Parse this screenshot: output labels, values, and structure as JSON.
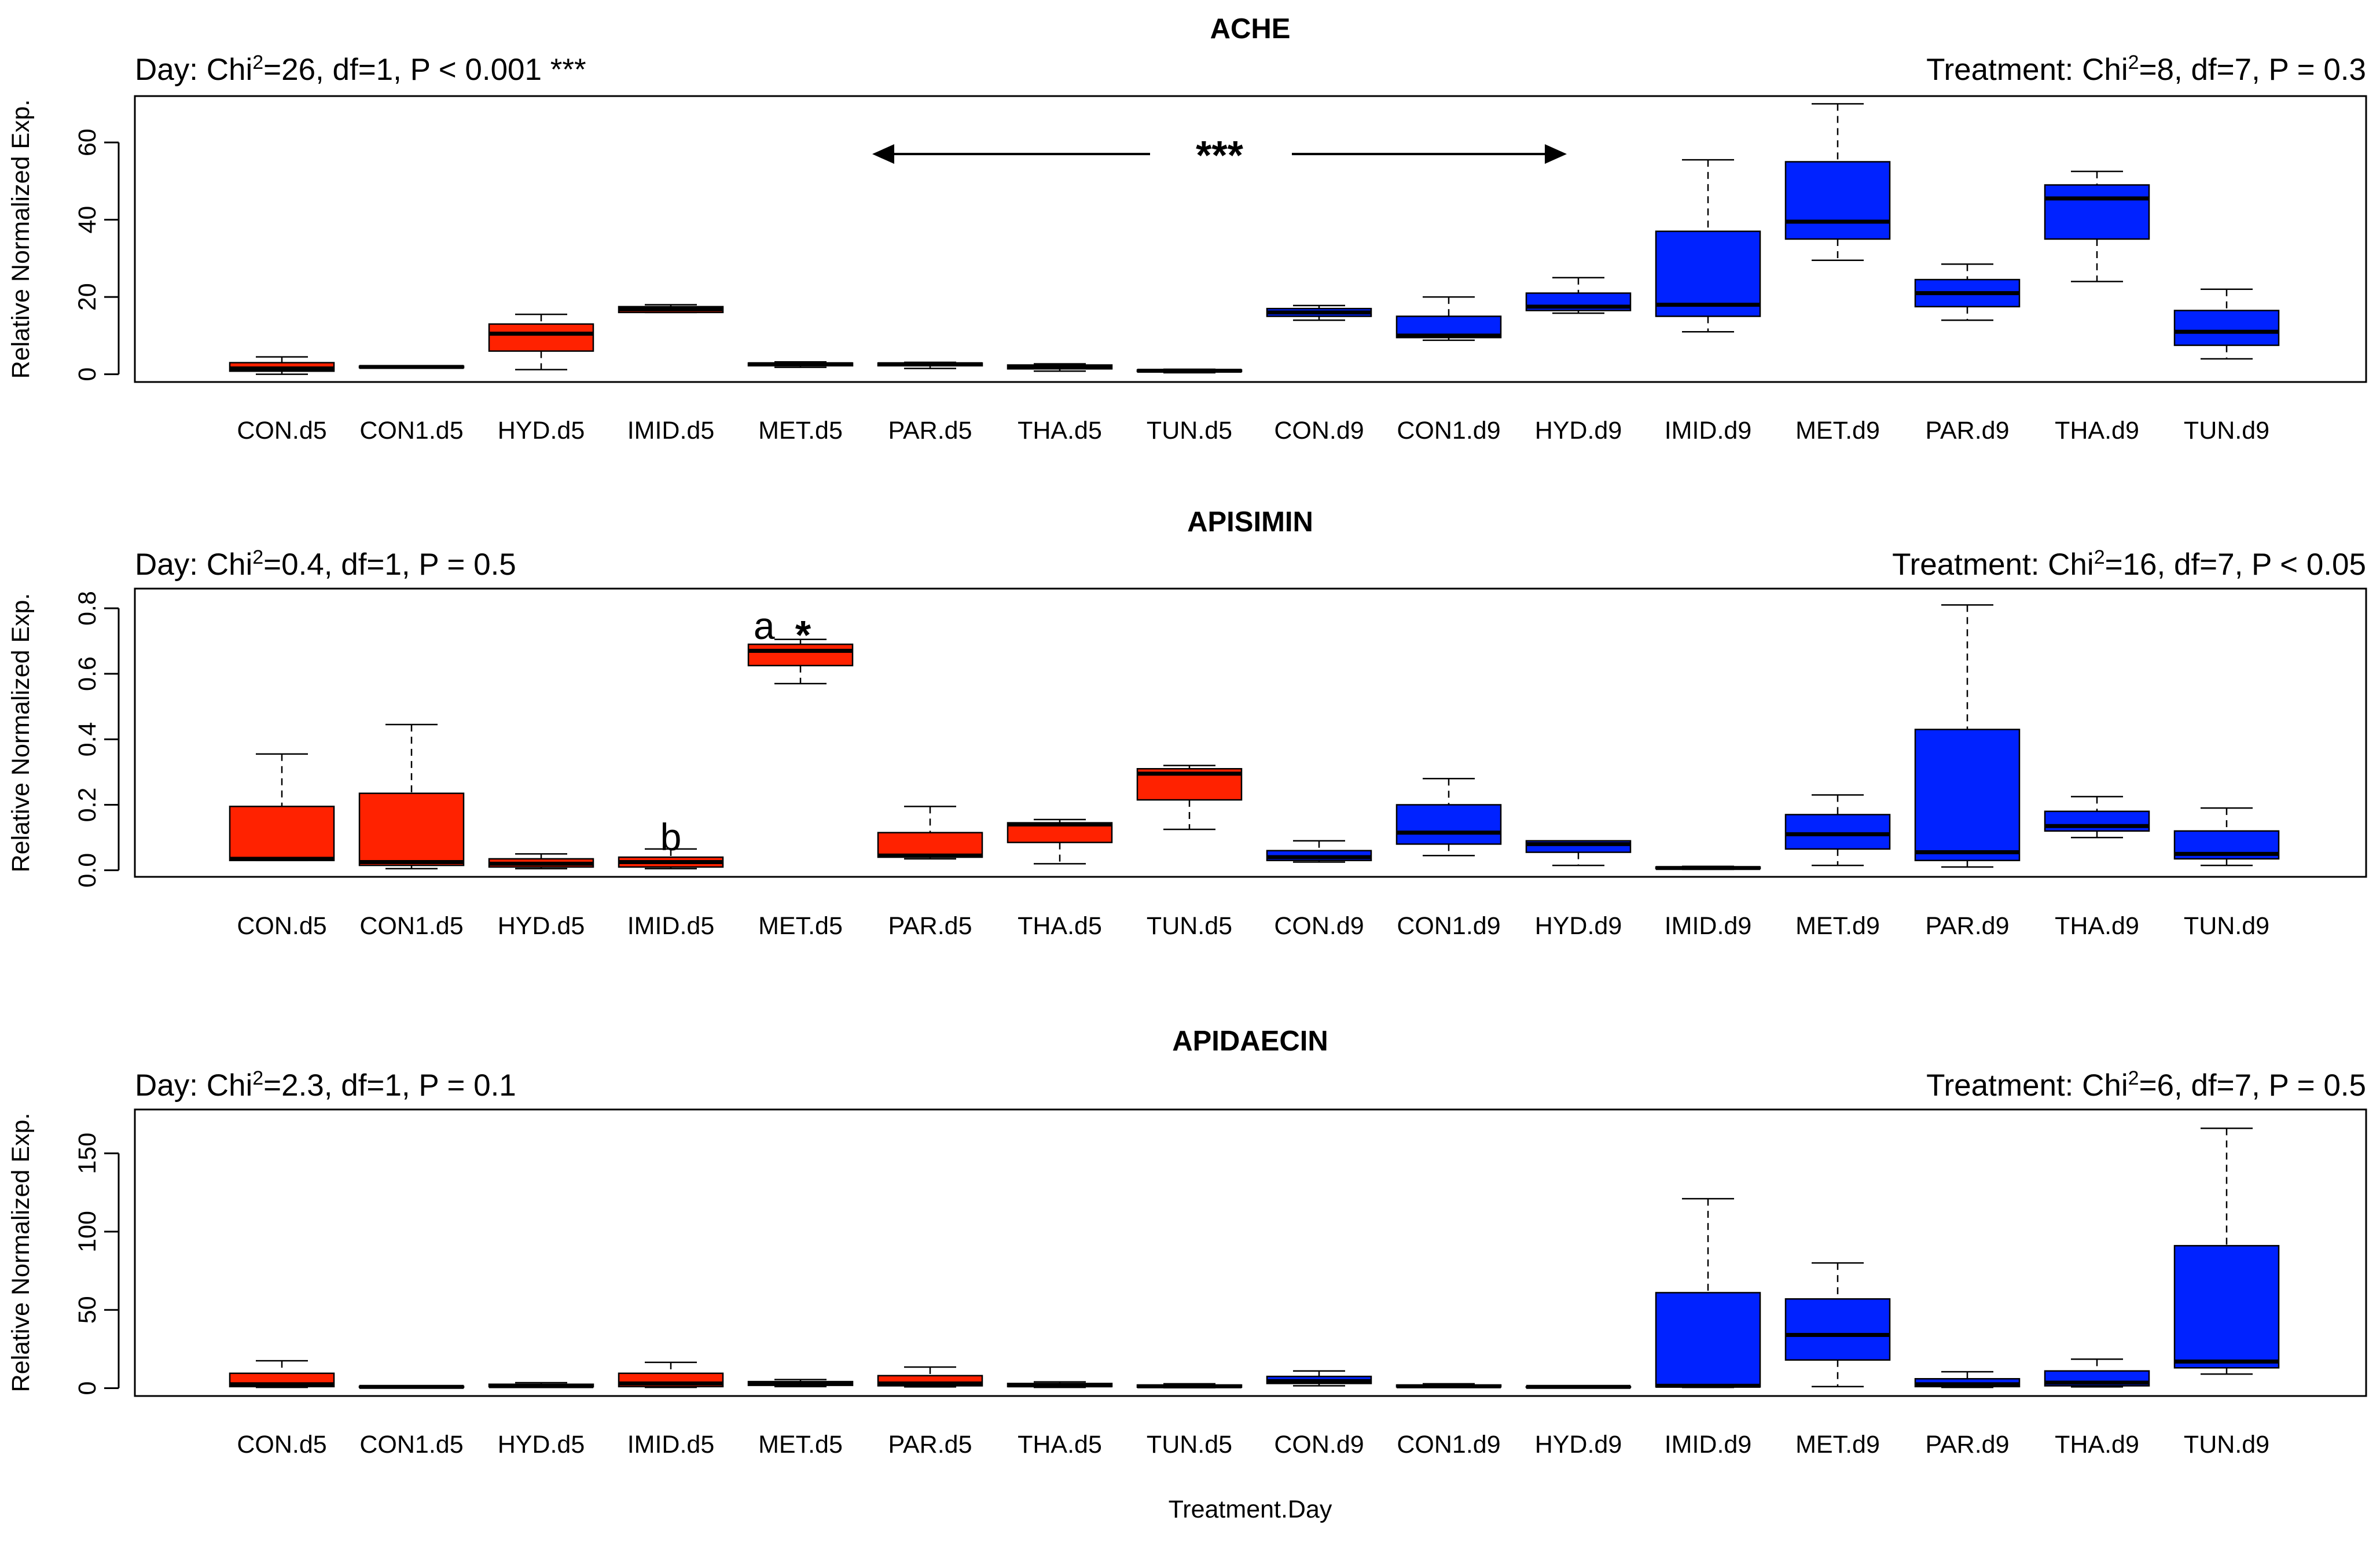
{
  "chart_data": {
    "type": "boxplot",
    "xlabel": "Treatment.Day",
    "categories": [
      "CON.d5",
      "CON1.d5",
      "HYD.d5",
      "IMID.d5",
      "MET.d5",
      "PAR.d5",
      "THA.d5",
      "TUN.d5",
      "CON.d9",
      "CON1.d9",
      "HYD.d9",
      "IMID.d9",
      "MET.d9",
      "PAR.d9",
      "THA.d9",
      "TUN.d9"
    ],
    "group_colors": {
      "d5": "#ff2200",
      "d9": "#0022ff"
    },
    "panels": [
      {
        "title": "ACHE",
        "ylabel": "Relative Normalized Exp.",
        "ylim": [
          -2,
          72
        ],
        "yticks": [
          0,
          20,
          40,
          60
        ],
        "stat_left_parts": [
          "Day: Chi",
          "2",
          "=26, df=1, P < 0.001 ***"
        ],
        "stat_right_parts": [
          "Treatment: Chi",
          "2",
          "=8, df=7, P = 0.3"
        ],
        "significance": {
          "label": "***",
          "from_category": "PAR.d5",
          "to_category": "HYD.d9",
          "y_value": 57
        },
        "letters": [],
        "boxes": [
          {
            "min": 0.0,
            "q1": 0.8,
            "median": 1.5,
            "q3": 3.0,
            "max": 4.5
          },
          {
            "min": 1.6,
            "q1": 1.7,
            "median": 1.9,
            "q3": 2.1,
            "max": 2.2
          },
          {
            "min": 1.2,
            "q1": 6.0,
            "median": 10.5,
            "q3": 13.0,
            "max": 15.5
          },
          {
            "min": 16.0,
            "q1": 16.0,
            "median": 16.8,
            "q3": 17.5,
            "max": 18.0
          },
          {
            "min": 1.8,
            "q1": 2.2,
            "median": 2.6,
            "q3": 2.9,
            "max": 3.2
          },
          {
            "min": 1.5,
            "q1": 2.2,
            "median": 2.6,
            "q3": 2.9,
            "max": 3.1
          },
          {
            "min": 0.8,
            "q1": 1.4,
            "median": 1.9,
            "q3": 2.4,
            "max": 2.7
          },
          {
            "min": 0.4,
            "q1": 0.7,
            "median": 0.9,
            "q3": 1.1,
            "max": 1.3
          },
          {
            "min": 14.0,
            "q1": 15.0,
            "median": 16.0,
            "q3": 17.0,
            "max": 17.8
          },
          {
            "min": 8.8,
            "q1": 9.5,
            "median": 10.0,
            "q3": 15.0,
            "max": 20.0
          },
          {
            "min": 15.8,
            "q1": 16.5,
            "median": 17.5,
            "q3": 21.0,
            "max": 25.0
          },
          {
            "min": 11.0,
            "q1": 15.0,
            "median": 18.0,
            "q3": 37.0,
            "max": 55.5
          },
          {
            "min": 29.5,
            "q1": 35.0,
            "median": 39.5,
            "q3": 55.0,
            "max": 70.0
          },
          {
            "min": 14.0,
            "q1": 17.5,
            "median": 21.0,
            "q3": 24.5,
            "max": 28.5
          },
          {
            "min": 24.0,
            "q1": 35.0,
            "median": 45.5,
            "q3": 49.0,
            "max": 52.5
          },
          {
            "min": 4.0,
            "q1": 7.5,
            "median": 11.0,
            "q3": 16.5,
            "max": 22.0
          }
        ]
      },
      {
        "title": "APISIMIN",
        "ylabel": "Relative Normalized Exp.",
        "ylim": [
          -0.02,
          0.86
        ],
        "yticks": [
          0.0,
          0.2,
          0.4,
          0.6,
          0.8
        ],
        "stat_left_parts": [
          "Day: Chi",
          "2",
          "=0.4, df=1, P = 0.5"
        ],
        "stat_right_parts": [
          "Treatment: Chi",
          "2",
          "=16, df=7, P < 0.05"
        ],
        "significance": null,
        "letters": [
          {
            "category": "MET.d5",
            "label": "a",
            "dx": -0.28,
            "y_value": 0.745
          },
          {
            "category": "MET.d5",
            "label": "*",
            "dx": 0.02,
            "y_value": 0.715
          },
          {
            "category": "IMID.d5",
            "label": "b",
            "dx": 0.0,
            "y_value": 0.1
          }
        ],
        "boxes": [
          {
            "min": 0.03,
            "q1": 0.03,
            "median": 0.035,
            "q3": 0.195,
            "max": 0.355
          },
          {
            "min": 0.005,
            "q1": 0.015,
            "median": 0.025,
            "q3": 0.235,
            "max": 0.445
          },
          {
            "min": 0.005,
            "q1": 0.01,
            "median": 0.02,
            "q3": 0.035,
            "max": 0.05
          },
          {
            "min": 0.005,
            "q1": 0.01,
            "median": 0.025,
            "q3": 0.04,
            "max": 0.065
          },
          {
            "min": 0.57,
            "q1": 0.625,
            "median": 0.67,
            "q3": 0.69,
            "max": 0.705
          },
          {
            "min": 0.035,
            "q1": 0.04,
            "median": 0.045,
            "q3": 0.115,
            "max": 0.195
          },
          {
            "min": 0.02,
            "q1": 0.085,
            "median": 0.14,
            "q3": 0.145,
            "max": 0.155
          },
          {
            "min": 0.125,
            "q1": 0.215,
            "median": 0.295,
            "q3": 0.31,
            "max": 0.32
          },
          {
            "min": 0.025,
            "q1": 0.03,
            "median": 0.04,
            "q3": 0.06,
            "max": 0.09
          },
          {
            "min": 0.045,
            "q1": 0.08,
            "median": 0.115,
            "q3": 0.2,
            "max": 0.28
          },
          {
            "min": 0.015,
            "q1": 0.055,
            "median": 0.08,
            "q3": 0.09,
            "max": 0.09
          },
          {
            "min": 0.003,
            "q1": 0.005,
            "median": 0.007,
            "q3": 0.01,
            "max": 0.012
          },
          {
            "min": 0.015,
            "q1": 0.065,
            "median": 0.11,
            "q3": 0.17,
            "max": 0.23
          },
          {
            "min": 0.01,
            "q1": 0.03,
            "median": 0.055,
            "q3": 0.43,
            "max": 0.81
          },
          {
            "min": 0.1,
            "q1": 0.12,
            "median": 0.135,
            "q3": 0.18,
            "max": 0.225
          },
          {
            "min": 0.015,
            "q1": 0.035,
            "median": 0.05,
            "q3": 0.12,
            "max": 0.19
          }
        ]
      },
      {
        "title": "APIDAECIN",
        "ylabel": "Relative Normalized Exp.",
        "ylim": [
          -5,
          178
        ],
        "yticks": [
          0,
          50,
          100,
          150
        ],
        "stat_left_parts": [
          "Day: Chi",
          "2",
          "=2.3, df=1, P = 0.1"
        ],
        "stat_right_parts": [
          "Treatment: Chi",
          "2",
          "=6, df=7, P = 0.5"
        ],
        "significance": null,
        "letters": [],
        "boxes": [
          {
            "min": 0.5,
            "q1": 1.0,
            "median": 2.5,
            "q3": 9.5,
            "max": 17.5
          },
          {
            "min": 0.3,
            "q1": 0.5,
            "median": 0.8,
            "q3": 1.2,
            "max": 1.5
          },
          {
            "min": 0.5,
            "q1": 0.9,
            "median": 1.3,
            "q3": 2.5,
            "max": 3.5
          },
          {
            "min": 0.5,
            "q1": 1.0,
            "median": 3.0,
            "q3": 9.5,
            "max": 16.5
          },
          {
            "min": 1.0,
            "q1": 1.8,
            "median": 2.8,
            "q3": 4.2,
            "max": 5.5
          },
          {
            "min": 0.8,
            "q1": 1.5,
            "median": 3.0,
            "q3": 8.0,
            "max": 13.5
          },
          {
            "min": 0.5,
            "q1": 1.0,
            "median": 1.8,
            "q3": 3.0,
            "max": 4.0
          },
          {
            "min": 0.3,
            "q1": 0.6,
            "median": 1.2,
            "q3": 2.0,
            "max": 2.8
          },
          {
            "min": 1.5,
            "q1": 3.0,
            "median": 4.5,
            "q3": 7.5,
            "max": 11.0
          },
          {
            "min": 0.5,
            "q1": 0.8,
            "median": 1.2,
            "q3": 2.0,
            "max": 2.8
          },
          {
            "min": 0.3,
            "q1": 0.5,
            "median": 0.8,
            "q3": 1.0,
            "max": 1.3
          },
          {
            "min": 0.5,
            "q1": 0.8,
            "median": 1.5,
            "q3": 61.0,
            "max": 121.0
          },
          {
            "min": 1.0,
            "q1": 18.0,
            "median": 34.0,
            "q3": 57.0,
            "max": 80.0
          },
          {
            "min": 0.5,
            "q1": 1.0,
            "median": 2.5,
            "q3": 6.0,
            "max": 10.5
          },
          {
            "min": 0.8,
            "q1": 1.5,
            "median": 3.5,
            "q3": 11.0,
            "max": 18.5
          },
          {
            "min": 9.0,
            "q1": 13.0,
            "median": 17.0,
            "q3": 91.0,
            "max": 166.0
          }
        ]
      }
    ]
  }
}
